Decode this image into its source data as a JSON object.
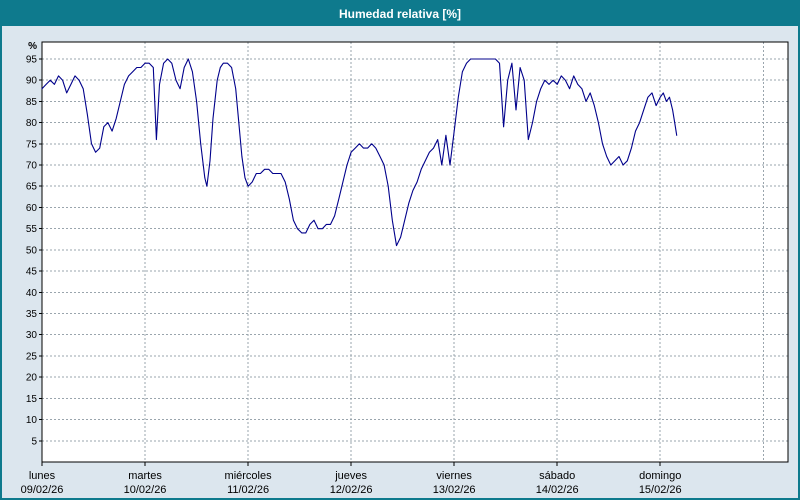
{
  "window": {
    "title": "Humedad relativa [%]"
  },
  "colors": {
    "titlebar": "#0e7a8d",
    "window_border": "#0e7a8d",
    "body_bg": "#dce6ee",
    "plot_bg": "#ffffff",
    "grid": "#9aa5ad",
    "axis": "#000000",
    "line": "#00008b",
    "label": "#000000",
    "title_text": "#ffffff"
  },
  "chart_data": {
    "type": "line",
    "title": "Humedad relativa [%]",
    "ylabel": "%",
    "xlabel": "",
    "ylim": [
      0,
      99
    ],
    "xlim": [
      0,
      7.24
    ],
    "grid": true,
    "legend_position": "none",
    "y_ticks": [
      5,
      10,
      15,
      20,
      25,
      30,
      35,
      40,
      45,
      50,
      55,
      60,
      65,
      70,
      75,
      80,
      85,
      90,
      95
    ],
    "vgrid_x": [
      1,
      2,
      3,
      4,
      5,
      6,
      7
    ],
    "x_ticks": [
      {
        "label": "lunes",
        "date": "09/02/26",
        "x": 0
      },
      {
        "label": "martes",
        "date": "10/02/26",
        "x": 1
      },
      {
        "label": "miércoles",
        "date": "11/02/26",
        "x": 2
      },
      {
        "label": "jueves",
        "date": "12/02/26",
        "x": 3
      },
      {
        "label": "viernes",
        "date": "13/02/26",
        "x": 4
      },
      {
        "label": "sábado",
        "date": "14/02/26",
        "x": 5
      },
      {
        "label": "domingo",
        "date": "15/02/26",
        "x": 6
      }
    ],
    "series": [
      {
        "name": "Humedad relativa [%]",
        "color": "#00008b",
        "points": [
          [
            0,
            88
          ],
          [
            0.04,
            89
          ],
          [
            0.08,
            90
          ],
          [
            0.12,
            89
          ],
          [
            0.16,
            91
          ],
          [
            0.2,
            90
          ],
          [
            0.24,
            87
          ],
          [
            0.28,
            89
          ],
          [
            0.32,
            91
          ],
          [
            0.36,
            90
          ],
          [
            0.4,
            88
          ],
          [
            0.44,
            82
          ],
          [
            0.48,
            75
          ],
          [
            0.52,
            73
          ],
          [
            0.56,
            74
          ],
          [
            0.6,
            79
          ],
          [
            0.64,
            80
          ],
          [
            0.68,
            78
          ],
          [
            0.72,
            81
          ],
          [
            0.76,
            85
          ],
          [
            0.8,
            89
          ],
          [
            0.84,
            91
          ],
          [
            0.88,
            92
          ],
          [
            0.92,
            93
          ],
          [
            0.96,
            93
          ],
          [
            1,
            94
          ],
          [
            1.04,
            94
          ],
          [
            1.08,
            93
          ],
          [
            1.11,
            76
          ],
          [
            1.14,
            89
          ],
          [
            1.18,
            94
          ],
          [
            1.22,
            95
          ],
          [
            1.26,
            94
          ],
          [
            1.3,
            90
          ],
          [
            1.34,
            88
          ],
          [
            1.38,
            93
          ],
          [
            1.42,
            95
          ],
          [
            1.46,
            92
          ],
          [
            1.5,
            85
          ],
          [
            1.54,
            75
          ],
          [
            1.58,
            67
          ],
          [
            1.6,
            65
          ],
          [
            1.63,
            71
          ],
          [
            1.66,
            81
          ],
          [
            1.7,
            90
          ],
          [
            1.73,
            93
          ],
          [
            1.76,
            94
          ],
          [
            1.8,
            94
          ],
          [
            1.84,
            93
          ],
          [
            1.88,
            88
          ],
          [
            1.91,
            80
          ],
          [
            1.94,
            72
          ],
          [
            1.97,
            67
          ],
          [
            2,
            65
          ],
          [
            2.04,
            66
          ],
          [
            2.08,
            68
          ],
          [
            2.12,
            68
          ],
          [
            2.16,
            69
          ],
          [
            2.2,
            69
          ],
          [
            2.24,
            68
          ],
          [
            2.28,
            68
          ],
          [
            2.32,
            68
          ],
          [
            2.36,
            66
          ],
          [
            2.4,
            62
          ],
          [
            2.44,
            57
          ],
          [
            2.48,
            55
          ],
          [
            2.52,
            54
          ],
          [
            2.56,
            54
          ],
          [
            2.6,
            56
          ],
          [
            2.64,
            57
          ],
          [
            2.68,
            55
          ],
          [
            2.72,
            55
          ],
          [
            2.76,
            56
          ],
          [
            2.8,
            56
          ],
          [
            2.84,
            58
          ],
          [
            2.88,
            62
          ],
          [
            2.92,
            66
          ],
          [
            2.96,
            70
          ],
          [
            3,
            73
          ],
          [
            3.04,
            74
          ],
          [
            3.08,
            75
          ],
          [
            3.12,
            74
          ],
          [
            3.16,
            74
          ],
          [
            3.2,
            75
          ],
          [
            3.24,
            74
          ],
          [
            3.28,
            72
          ],
          [
            3.32,
            70
          ],
          [
            3.36,
            65
          ],
          [
            3.4,
            57
          ],
          [
            3.44,
            51
          ],
          [
            3.48,
            53
          ],
          [
            3.52,
            57
          ],
          [
            3.56,
            61
          ],
          [
            3.6,
            64
          ],
          [
            3.64,
            66
          ],
          [
            3.68,
            69
          ],
          [
            3.72,
            71
          ],
          [
            3.76,
            73
          ],
          [
            3.8,
            74
          ],
          [
            3.84,
            76
          ],
          [
            3.88,
            70
          ],
          [
            3.92,
            77
          ],
          [
            3.96,
            70
          ],
          [
            4,
            78
          ],
          [
            4.04,
            86
          ],
          [
            4.08,
            92
          ],
          [
            4.12,
            94
          ],
          [
            4.16,
            95
          ],
          [
            4.2,
            95
          ],
          [
            4.24,
            95
          ],
          [
            4.28,
            95
          ],
          [
            4.32,
            95
          ],
          [
            4.36,
            95
          ],
          [
            4.4,
            95
          ],
          [
            4.44,
            94
          ],
          [
            4.48,
            79
          ],
          [
            4.52,
            90
          ],
          [
            4.56,
            94
          ],
          [
            4.6,
            83
          ],
          [
            4.64,
            93
          ],
          [
            4.68,
            90
          ],
          [
            4.72,
            76
          ],
          [
            4.76,
            80
          ],
          [
            4.8,
            85
          ],
          [
            4.84,
            88
          ],
          [
            4.88,
            90
          ],
          [
            4.92,
            89
          ],
          [
            4.96,
            90
          ],
          [
            5,
            89
          ],
          [
            5.04,
            91
          ],
          [
            5.08,
            90
          ],
          [
            5.12,
            88
          ],
          [
            5.16,
            91
          ],
          [
            5.2,
            89
          ],
          [
            5.24,
            88
          ],
          [
            5.28,
            85
          ],
          [
            5.32,
            87
          ],
          [
            5.36,
            84
          ],
          [
            5.4,
            80
          ],
          [
            5.44,
            75
          ],
          [
            5.48,
            72
          ],
          [
            5.52,
            70
          ],
          [
            5.56,
            71
          ],
          [
            5.6,
            72
          ],
          [
            5.64,
            70
          ],
          [
            5.68,
            71
          ],
          [
            5.72,
            74
          ],
          [
            5.76,
            78
          ],
          [
            5.8,
            80
          ],
          [
            5.84,
            83
          ],
          [
            5.88,
            86
          ],
          [
            5.92,
            87
          ],
          [
            5.96,
            84
          ],
          [
            6,
            86
          ],
          [
            6.03,
            87
          ],
          [
            6.06,
            85
          ],
          [
            6.09,
            86
          ],
          [
            6.12,
            83
          ],
          [
            6.14,
            80
          ],
          [
            6.16,
            77
          ]
        ]
      }
    ]
  }
}
